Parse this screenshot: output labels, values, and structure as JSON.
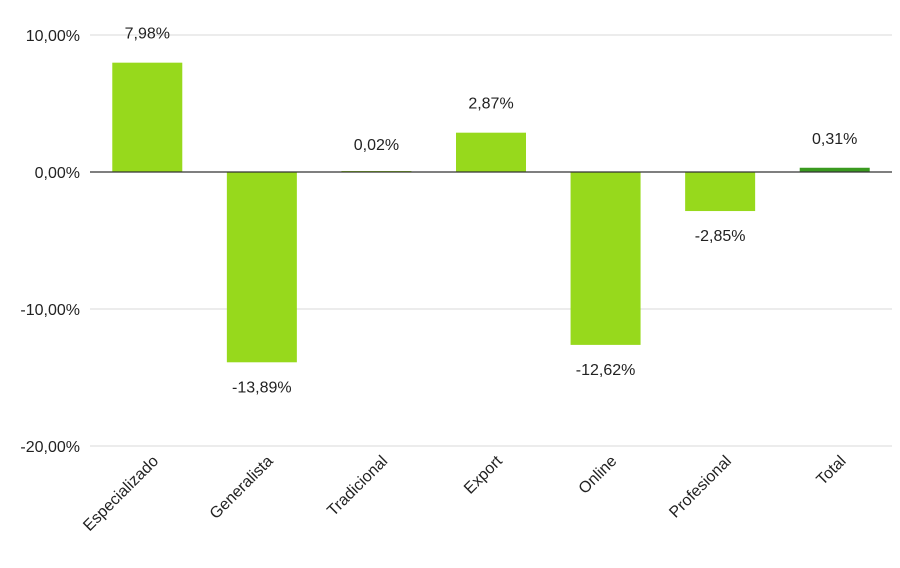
{
  "chart_data": {
    "type": "bar",
    "categories": [
      "Especializado",
      "Generalista",
      "Tradicional",
      "Export",
      "Online",
      "Profesional",
      "Total"
    ],
    "values": [
      7.98,
      -13.89,
      0.02,
      2.87,
      -12.62,
      -2.85,
      0.31
    ],
    "data_labels": [
      "7,98%",
      "-13,89%",
      "0,02%",
      "2,87%",
      "-12,62%",
      "-2,85%",
      "0,31%"
    ],
    "y_ticks": [
      10,
      0,
      -10,
      -20
    ],
    "y_tick_labels": [
      "10,00%",
      "0,00%",
      "-10,00%",
      "-20,00%"
    ],
    "ylim": [
      -20,
      10
    ],
    "title": "",
    "xlabel": "",
    "ylabel": "",
    "grid": true,
    "legend": "none",
    "colors": {
      "bar": "#97d91c",
      "total_bar": "#3a9a1f",
      "grid": "#d9d9d9",
      "zero_line": "#333333",
      "text": "#222222"
    }
  }
}
